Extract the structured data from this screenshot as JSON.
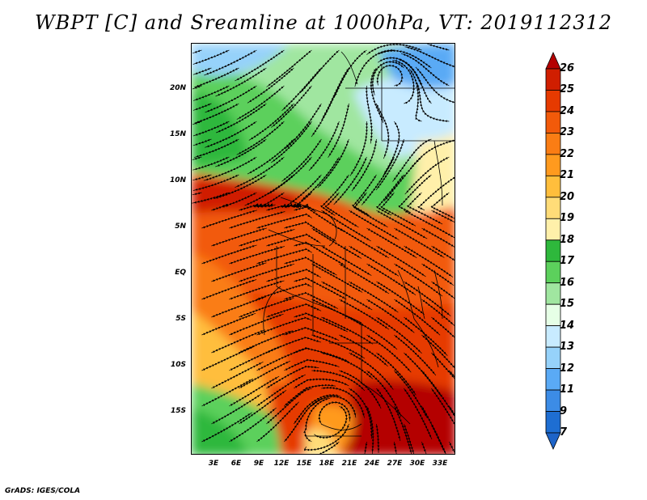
{
  "title": "WBPT [C] and Sreamline at 1000hPa, VT: 2019112312",
  "credit": "GrADS: IGES/COLA",
  "map": {
    "lat_labels": [
      "20N",
      "15N",
      "10N",
      "5N",
      "EQ",
      "5S",
      "10S",
      "15S"
    ],
    "lon_labels": [
      "3E",
      "6E",
      "9E",
      "12E",
      "15E",
      "18E",
      "21E",
      "24E",
      "27E",
      "30E",
      "33E"
    ],
    "lon_range": [
      0,
      35
    ],
    "lat_range": [
      -19.8,
      24.8
    ]
  },
  "colorbar": {
    "labels": [
      "26",
      "25",
      "24",
      "23",
      "22",
      "21",
      "20",
      "19",
      "18",
      "17",
      "16",
      "15",
      "14",
      "13",
      "12",
      "11",
      "9",
      "7"
    ],
    "colors": [
      "#b40000",
      "#d01e00",
      "#e63a00",
      "#f25a0a",
      "#fa7d14",
      "#ff9a1e",
      "#ffbe3c",
      "#ffdc78",
      "#fff0aa",
      "#2eb83c",
      "#5cd05c",
      "#a0e6a0",
      "#e6ffe6",
      "#c8ebff",
      "#96d2fa",
      "#5aaaf5",
      "#3c8ce6",
      "#1e6ed2",
      "#1e64c8"
    ]
  }
}
